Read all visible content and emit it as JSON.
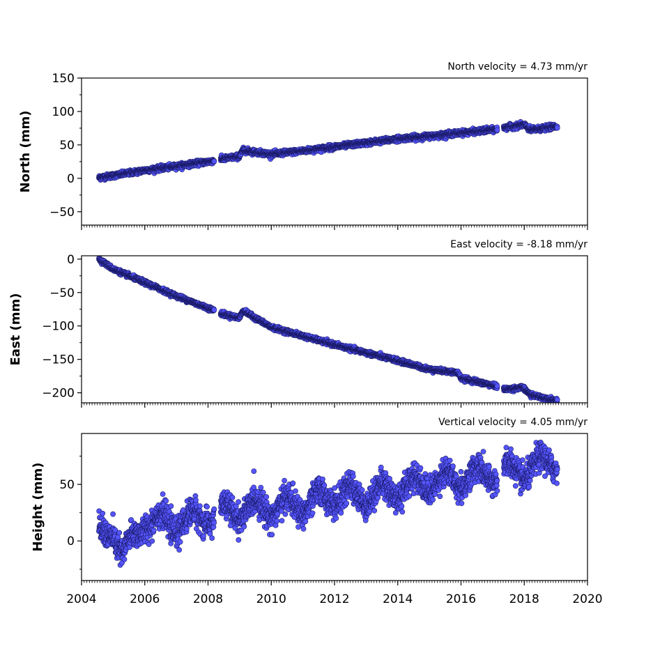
{
  "chart_data": [
    {
      "type": "scatter",
      "panel": "north",
      "annotation": "North velocity = 4.73 mm/yr",
      "xlabel": "",
      "ylabel": "North (mm)",
      "xlim": [
        2004,
        2020
      ],
      "ylim": [
        -70,
        150
      ],
      "yticks": [
        -50,
        0,
        50,
        100,
        150
      ],
      "yticklabels": [
        "−50",
        "0",
        "50",
        "100",
        "150"
      ],
      "velocity_mm_per_yr": 4.73,
      "data_start": 2004.55,
      "data_end": 2019.05,
      "gaps": [
        [
          2008.2,
          2008.4
        ],
        [
          2017.15,
          2017.35
        ]
      ],
      "noise_mm": 1.8,
      "series": [
        {
          "name": "",
          "x": [
            2004.55,
            2005.0,
            2006.0,
            2007.0,
            2008.15,
            2008.45,
            2009.0,
            2009.1,
            2010.0,
            2011.0,
            2012.0,
            2013.0,
            2014.0,
            2015.0,
            2016.0,
            2017.1,
            2017.4,
            2018.0,
            2018.2,
            2019.05
          ],
          "y": [
            1,
            4,
            12,
            18,
            26,
            29,
            33,
            42,
            36,
            41,
            47,
            53,
            59,
            63,
            68,
            73,
            76,
            80,
            72,
            78
          ]
        }
      ]
    },
    {
      "type": "scatter",
      "panel": "east",
      "annotation": "East velocity = -8.18 mm/yr",
      "xlabel": "",
      "ylabel": "East (mm)",
      "xlim": [
        2004,
        2020
      ],
      "ylim": [
        -215,
        5
      ],
      "yticks": [
        -200,
        -150,
        -100,
        -50,
        0
      ],
      "yticklabels": [
        "−200",
        "−150",
        "−100",
        "−50",
        "0"
      ],
      "velocity_mm_per_yr": -8.18,
      "data_start": 2004.55,
      "data_end": 2019.05,
      "gaps": [
        [
          2008.2,
          2008.4
        ],
        [
          2017.15,
          2017.35
        ]
      ],
      "noise_mm": 1.5,
      "series": [
        {
          "name": "",
          "x": [
            2004.55,
            2005.0,
            2006.0,
            2007.0,
            2008.15,
            2008.45,
            2009.0,
            2009.1,
            2010.0,
            2011.0,
            2012.0,
            2013.0,
            2014.0,
            2015.0,
            2015.9,
            2016.0,
            2017.1,
            2017.4,
            2017.95,
            2018.2,
            2019.05
          ],
          "y": [
            0,
            -15,
            -35,
            -55,
            -76,
            -82,
            -88,
            -77,
            -102,
            -115,
            -128,
            -140,
            -152,
            -165,
            -170,
            -178,
            -190,
            -195,
            -192,
            -203,
            -212
          ]
        }
      ]
    },
    {
      "type": "scatter",
      "panel": "height",
      "annotation": "Vertical velocity = 4.05 mm/yr",
      "xlabel": "",
      "ylabel": "Height (mm)",
      "xlim": [
        2004,
        2020
      ],
      "ylim": [
        -35,
        95
      ],
      "yticks": [
        0,
        50
      ],
      "yticklabels": [
        "0",
        "50"
      ],
      "xticks": [
        2004,
        2006,
        2008,
        2010,
        2012,
        2014,
        2016,
        2018,
        2020
      ],
      "xticklabels": [
        "2004",
        "2006",
        "2008",
        "2010",
        "2012",
        "2014",
        "2016",
        "2018",
        "2020"
      ],
      "velocity_mm_per_yr": 4.05,
      "data_start": 2004.55,
      "data_end": 2019.05,
      "gaps": [
        [
          2008.2,
          2008.4
        ],
        [
          2017.15,
          2017.35
        ]
      ],
      "noise_mm": 6,
      "seasonal_amplitude_mm": 8,
      "series": [
        {
          "name": "",
          "x": [
            2004.55,
            2005.0,
            2005.3,
            2006.0,
            2007.0,
            2008.0,
            2009.0,
            2010.0,
            2011.0,
            2012.0,
            2013.0,
            2014.0,
            2015.0,
            2016.0,
            2017.0,
            2018.0,
            2019.05
          ],
          "y": [
            3,
            12,
            -15,
            18,
            15,
            22,
            27,
            30,
            32,
            40,
            40,
            46,
            52,
            55,
            60,
            62,
            72
          ]
        }
      ]
    }
  ],
  "style": {
    "marker_fill": "#5555ff",
    "marker_stroke": "#1a1a66",
    "axis_color": "#000000"
  }
}
